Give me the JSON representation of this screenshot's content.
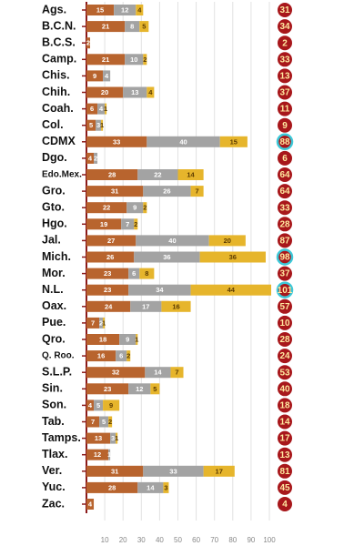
{
  "chart_data": {
    "type": "stacked_hbar",
    "categories": [
      "Ags.",
      "B.C.N.",
      "B.C.S.",
      "Camp.",
      "Chis.",
      "Chih.",
      "Coah.",
      "Col.",
      "CDMX",
      "Dgo.",
      "Edo.Mex.",
      "Gro.",
      "Gto.",
      "Hgo.",
      "Jal.",
      "Mich.",
      "Mor.",
      "N.L.",
      "Oax.",
      "Pue.",
      "Qro.",
      "Q. Roo.",
      "S.L.P.",
      "Sin.",
      "Son.",
      "Tab.",
      "Tamps.",
      "Tlax.",
      "Ver.",
      "Yuc.",
      "Zac."
    ],
    "series": [
      {
        "color": "#b8642e",
        "values": [
          15,
          21,
          2,
          21,
          9,
          20,
          6,
          5,
          33,
          4,
          28,
          31,
          22,
          19,
          27,
          26,
          23,
          23,
          24,
          7,
          18,
          16,
          32,
          23,
          4,
          7,
          13,
          12,
          31,
          28,
          4
        ]
      },
      {
        "color": "#a3a3a3",
        "values": [
          12,
          8,
          null,
          10,
          4,
          13,
          4,
          3,
          40,
          2,
          22,
          26,
          9,
          7,
          40,
          36,
          6,
          34,
          17,
          2,
          9,
          6,
          14,
          12,
          5,
          5,
          3,
          1,
          33,
          14,
          null
        ]
      },
      {
        "color": "#e6b52c",
        "values": [
          4,
          5,
          null,
          2,
          null,
          4,
          1,
          1,
          15,
          null,
          14,
          7,
          2,
          2,
          20,
          36,
          8,
          44,
          16,
          1,
          1,
          2,
          7,
          5,
          9,
          2,
          1,
          null,
          17,
          3,
          null
        ]
      }
    ],
    "totals": [
      31,
      34,
      2,
      33,
      13,
      37,
      11,
      9,
      88,
      6,
      64,
      64,
      33,
      28,
      87,
      98,
      37,
      101,
      57,
      10,
      28,
      24,
      53,
      40,
      18,
      14,
      17,
      13,
      81,
      45,
      4
    ],
    "highlight": [
      8,
      15,
      17
    ],
    "xlim": [
      0,
      100
    ],
    "xticks": [
      10,
      20,
      30,
      40,
      50,
      60,
      70,
      80,
      90,
      100
    ],
    "grid": true
  }
}
